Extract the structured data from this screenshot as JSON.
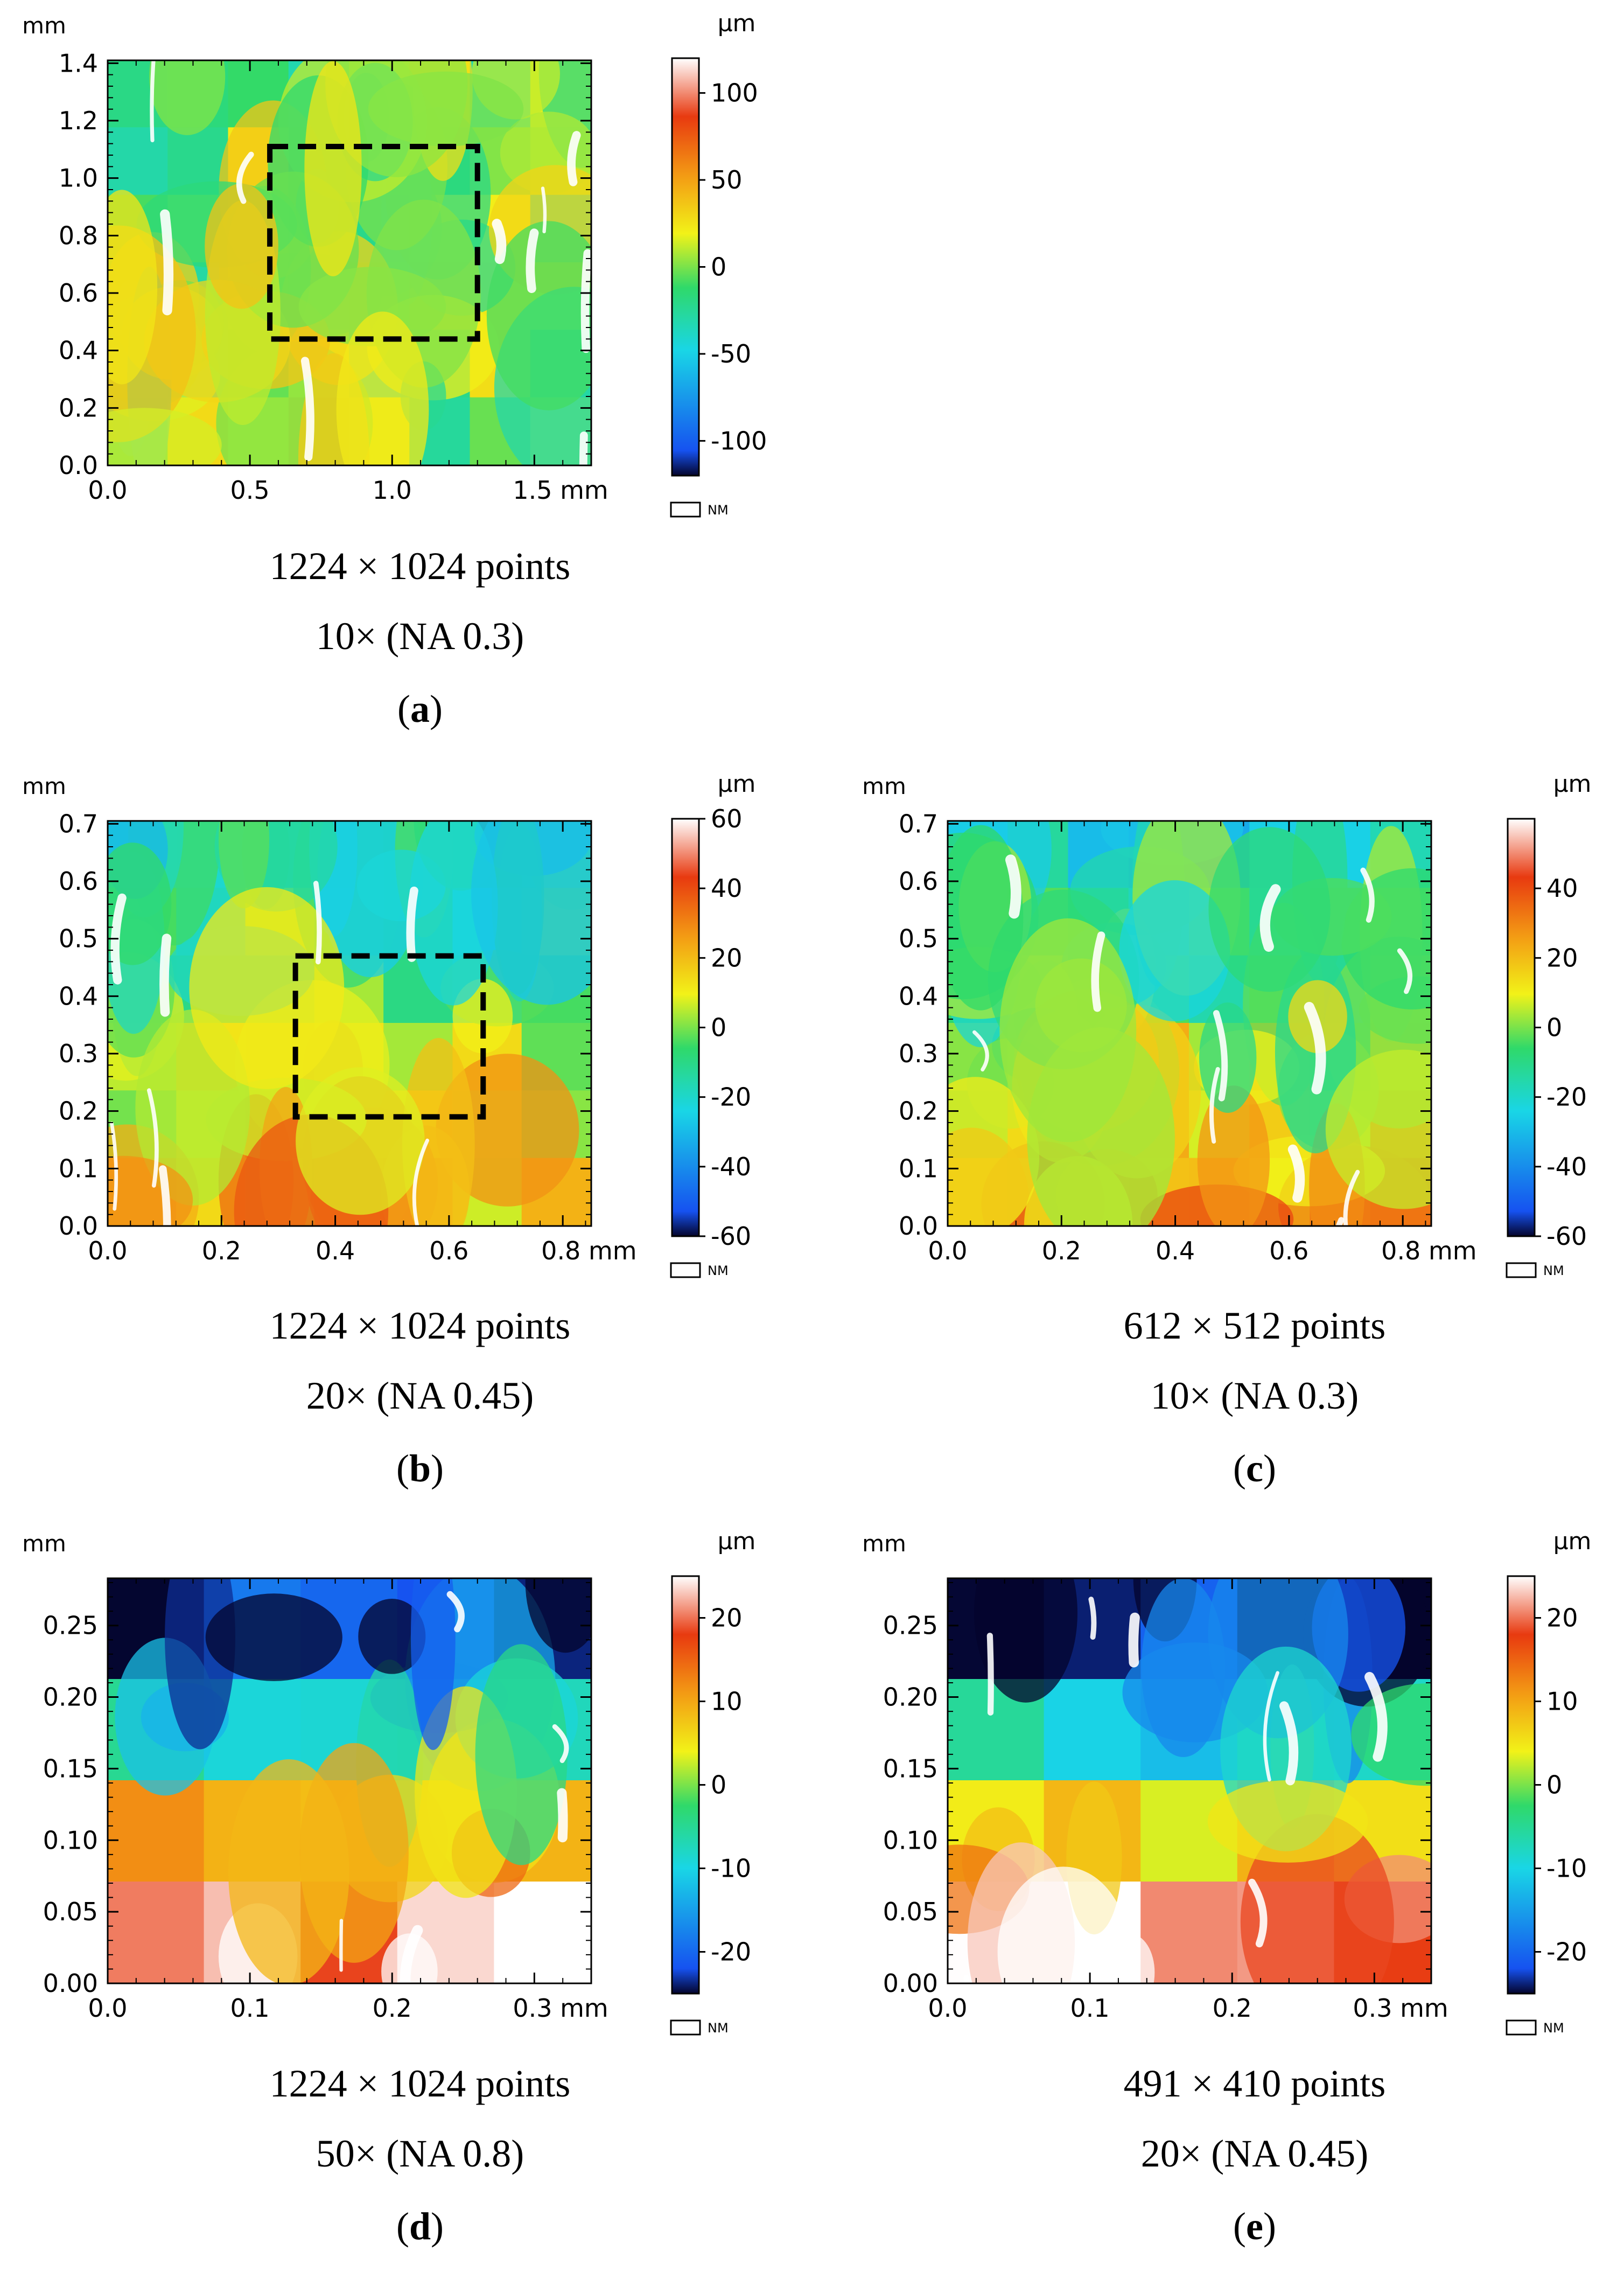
{
  "colors": {
    "high": "#ffffff",
    "red": "#e83a10",
    "orange": "#f39a14",
    "yellow": "#f2f218",
    "green": "#2fd96a",
    "cyan": "#19d6e6",
    "blue": "#1652f0",
    "low": "#04042c",
    "frame": "#000000",
    "text": "#000000"
  },
  "common": {
    "colorbar_unit": "µm",
    "axis_unit": "mm",
    "nm_label": "NM"
  },
  "chart_data": [
    {
      "type": "heatmap",
      "panel": "(a)",
      "panel_letter": "a",
      "caption_line1": "1224 × 1024 points",
      "caption_line2": "10× (NA 0.3)",
      "xlim": [
        0,
        1.7
      ],
      "ylim": [
        0,
        1.41
      ],
      "xticks": [
        0.0,
        0.5,
        1.0,
        1.5
      ],
      "xtick_labels": [
        "0.0",
        "0.5",
        "1.0",
        "1.5 mm"
      ],
      "yticks": [
        0.0,
        0.2,
        0.4,
        0.6,
        0.8,
        1.0,
        1.2,
        1.4
      ],
      "ytick_labels": [
        "0.0",
        "0.2",
        "0.4",
        "0.6",
        "0.8",
        "1.0",
        "1.2",
        "1.4"
      ],
      "ylabel": "mm",
      "colorbar": {
        "unit": "µm",
        "range": [
          -120,
          120
        ],
        "ticks": [
          100,
          50,
          0,
          -50,
          -100
        ],
        "tick_labels": [
          "100",
          "50",
          "0",
          "-50",
          "-100"
        ]
      },
      "roi_box": {
        "x0": 0.57,
        "x1": 1.3,
        "y0": 0.44,
        "y1": 1.11
      },
      "surface": {
        "base": 0,
        "gradient": 0,
        "noise": 38,
        "cells": [
          8,
          6
        ],
        "streaks": 10,
        "seed": 11
      }
    },
    {
      "type": "heatmap",
      "panel": "(b)",
      "panel_letter": "b",
      "caption_line1": "1224 × 1024 points",
      "caption_line2": "20× (NA 0.45)",
      "xlim": [
        0,
        0.85
      ],
      "ylim": [
        0,
        0.705
      ],
      "xticks": [
        0.0,
        0.2,
        0.4,
        0.6,
        0.8
      ],
      "xtick_labels": [
        "0.0",
        "0.2",
        "0.4",
        "0.6",
        "0.8 mm"
      ],
      "yticks": [
        0.0,
        0.1,
        0.2,
        0.3,
        0.4,
        0.5,
        0.6,
        0.7
      ],
      "ytick_labels": [
        "0.0",
        "0.1",
        "0.2",
        "0.3",
        "0.4",
        "0.5",
        "0.6",
        "0.7"
      ],
      "ylabel": "mm",
      "colorbar": {
        "unit": "µm",
        "range": [
          -60,
          60
        ],
        "ticks": [
          60,
          40,
          20,
          0,
          -20,
          -40,
          -60
        ],
        "tick_labels": [
          "60",
          "40",
          "20",
          "0",
          "-20",
          "-40",
          "-60"
        ]
      },
      "roi_box": {
        "x0": 0.33,
        "x1": 0.66,
        "y0": 0.19,
        "y1": 0.47
      },
      "surface": {
        "base": 2,
        "gradient": -22,
        "noise": 16,
        "cells": [
          7,
          6
        ],
        "streaks": 8,
        "seed": 23
      }
    },
    {
      "type": "heatmap",
      "panel": "(c)",
      "panel_letter": "c",
      "caption_line1": "612 × 512 points",
      "caption_line2": "10× (NA 0.3)",
      "xlim": [
        0,
        0.85
      ],
      "ylim": [
        0,
        0.705
      ],
      "xticks": [
        0.0,
        0.2,
        0.4,
        0.6,
        0.8
      ],
      "xtick_labels": [
        "0.0",
        "0.2",
        "0.4",
        "0.6",
        "0.8 mm"
      ],
      "yticks": [
        0.0,
        0.1,
        0.2,
        0.3,
        0.4,
        0.5,
        0.6,
        0.7
      ],
      "ytick_labels": [
        "0.0",
        "0.1",
        "0.2",
        "0.3",
        "0.4",
        "0.5",
        "0.6",
        "0.7"
      ],
      "ylabel": "mm",
      "colorbar": {
        "unit": "µm",
        "range": [
          -60,
          60
        ],
        "ticks": [
          40,
          20,
          0,
          -20,
          -40,
          -60
        ],
        "tick_labels": [
          "40",
          "20",
          "0",
          "-20",
          "-40",
          "-60"
        ]
      },
      "roi_box": null,
      "surface": {
        "base": 2,
        "gradient": -24,
        "noise": 17,
        "cells": [
          8,
          6
        ],
        "streaks": 12,
        "seed": 37
      }
    },
    {
      "type": "heatmap",
      "panel": "(d)",
      "panel_letter": "d",
      "caption_line1": "1224 × 1024 points",
      "caption_line2": "50× (NA 0.8)",
      "xlim": [
        0,
        0.34
      ],
      "ylim": [
        0,
        0.283
      ],
      "xticks": [
        0.0,
        0.1,
        0.2,
        0.3
      ],
      "xtick_labels": [
        "0.0",
        "0.1",
        "0.2",
        "0.3 mm"
      ],
      "yticks": [
        0.0,
        0.05,
        0.1,
        0.15,
        0.2,
        0.25
      ],
      "ytick_labels": [
        "0.00",
        "0.05",
        "0.10",
        "0.15",
        "0.20",
        "0.25"
      ],
      "ylabel": "mm",
      "colorbar": {
        "unit": "µm",
        "range": [
          -25,
          25
        ],
        "ticks": [
          20,
          10,
          0,
          -10,
          -20
        ],
        "tick_labels": [
          "20",
          "10",
          "0",
          "-10",
          "-20"
        ]
      },
      "roi_box": null,
      "surface": {
        "base": 0,
        "gradient": -30,
        "noise": 5,
        "cells": [
          5,
          4
        ],
        "streaks": 6,
        "seed": 51
      }
    },
    {
      "type": "heatmap",
      "panel": "(e)",
      "panel_letter": "e",
      "caption_line1": "491 × 410 points",
      "caption_line2": "20× (NA 0.45)",
      "xlim": [
        0,
        0.34
      ],
      "ylim": [
        0,
        0.283
      ],
      "xticks": [
        0.0,
        0.1,
        0.2,
        0.3
      ],
      "xtick_labels": [
        "0.0",
        "0.1",
        "0.2",
        "0.3 mm"
      ],
      "yticks": [
        0.0,
        0.05,
        0.1,
        0.15,
        0.2,
        0.25
      ],
      "ytick_labels": [
        "0.00",
        "0.05",
        "0.10",
        "0.15",
        "0.20",
        "0.25"
      ],
      "ylabel": "mm",
      "colorbar": {
        "unit": "µm",
        "range": [
          -25,
          25
        ],
        "ticks": [
          20,
          10,
          0,
          -10,
          -20
        ],
        "tick_labels": [
          "20",
          "10",
          "0",
          "-10",
          "-20"
        ]
      },
      "roi_box": null,
      "surface": {
        "base": 0,
        "gradient": -30,
        "noise": 5,
        "cells": [
          5,
          4
        ],
        "streaks": 8,
        "seed": 67
      }
    }
  ]
}
